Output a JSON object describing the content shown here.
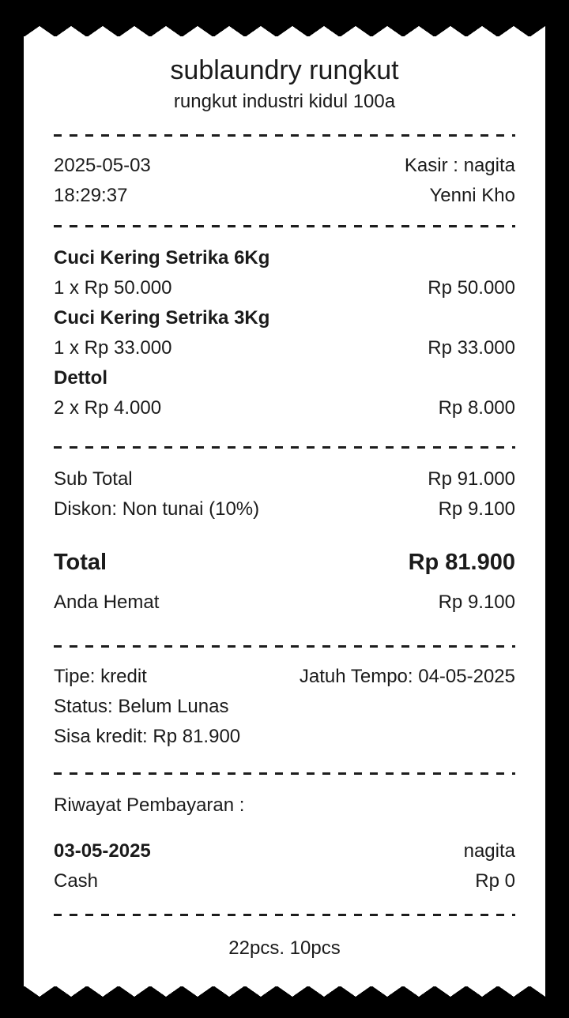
{
  "receipt": {
    "store": {
      "name": "sublaundry rungkut",
      "address": "rungkut industri kidul 100a"
    },
    "meta": {
      "date": "2025-05-03",
      "time": "18:29:37",
      "cashier": "Kasir : nagita",
      "customer": "Yenni Kho"
    },
    "items": [
      {
        "name": "Cuci Kering Setrika 6Kg",
        "qty_price": "1 x Rp 50.000",
        "amount": "Rp 50.000"
      },
      {
        "name": "Cuci Kering Setrika 3Kg",
        "qty_price": "1 x Rp 33.000",
        "amount": "Rp 33.000"
      },
      {
        "name": "Dettol",
        "qty_price": "2 x Rp 4.000",
        "amount": "Rp 8.000"
      }
    ],
    "totals": {
      "subtotal_label": "Sub Total",
      "subtotal_value": "Rp 91.000",
      "discount_label": "Diskon: Non tunai (10%)",
      "discount_value": "Rp 9.100",
      "total_label": "Total",
      "total_value": "Rp 81.900",
      "savings_label": "Anda Hemat",
      "savings_value": "Rp 9.100"
    },
    "credit": {
      "type": "Tipe: kredit",
      "due": "Jatuh Tempo: 04-05-2025",
      "status": "Status: Belum Lunas",
      "remaining": "Sisa kredit: Rp 81.900"
    },
    "payments": {
      "heading": "Riwayat Pembayaran :",
      "entries": [
        {
          "date": "03-05-2025",
          "by": "nagita",
          "method": "Cash",
          "amount": "Rp 0"
        }
      ]
    },
    "footer": "22pcs. 10pcs"
  },
  "colors": {
    "background": "#000000",
    "paper": "#ffffff",
    "text": "#1b1b1b",
    "dash": "#1d1d1d"
  }
}
